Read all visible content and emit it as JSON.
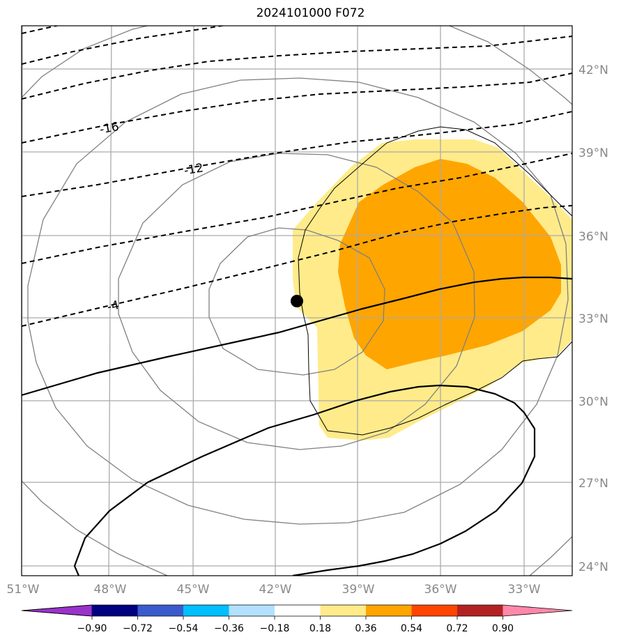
{
  "title": "2024101000 F072",
  "lon_labels": [
    "51°W",
    "48°W",
    "45°W",
    "42°W",
    "39°W",
    "36°W",
    "33°W"
  ],
  "lat_labels": [
    "42°N",
    "39°N",
    "36°N",
    "33°N",
    "30°N",
    "27°N",
    "24°N"
  ],
  "contour_labels": [
    "-16",
    "-12",
    "-4"
  ],
  "colorbar": {
    "colors": [
      "#9933cc",
      "#000080",
      "#3a5bcc",
      "#00bfff",
      "#b3e0ff",
      "#ffffff",
      "#ffeb8a",
      "#ffa500",
      "#ff4500",
      "#b22222",
      "#ff88aa"
    ],
    "tick_labels": [
      "−0.90",
      "−0.72",
      "−0.54",
      "−0.36",
      "−0.18",
      "0.18",
      "0.36",
      "0.54",
      "0.72",
      "0.90"
    ]
  },
  "center_marker": "filled-black-circle"
}
